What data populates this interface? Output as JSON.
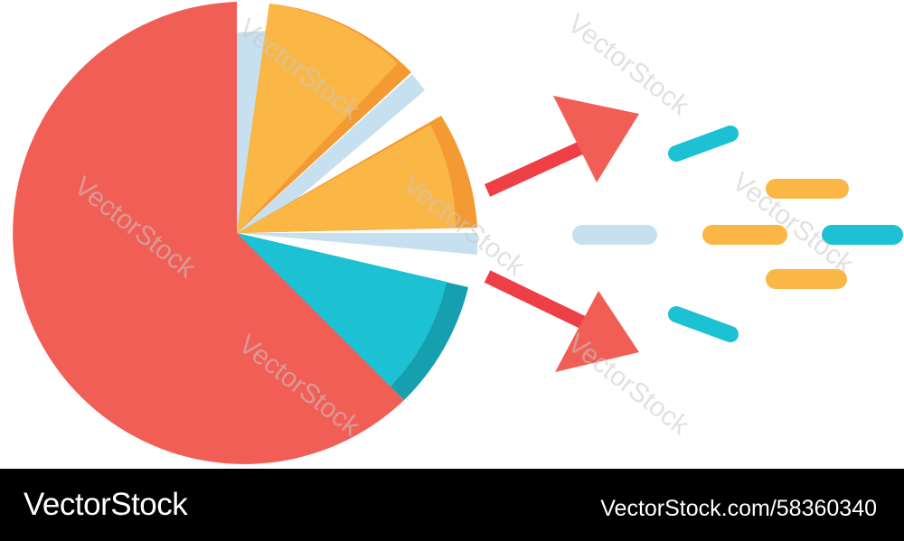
{
  "watermark": {
    "text": "VectorStock",
    "footer_brand": "VectorStock",
    "footer_id": "VectorStock.com/58360340"
  },
  "colors": {
    "red": "#f15e56",
    "orange": "#fbb746",
    "orange_dark": "#f49a33",
    "teal": "#1cc2d3",
    "teal_dark": "#169fae",
    "light_blue": "#c7e0f0",
    "arrow_red": "#ee3f46"
  },
  "icons": [
    "pie-chart-icon",
    "arrow-up-right-icon",
    "arrow-down-right-icon",
    "speed-dash-icon"
  ]
}
